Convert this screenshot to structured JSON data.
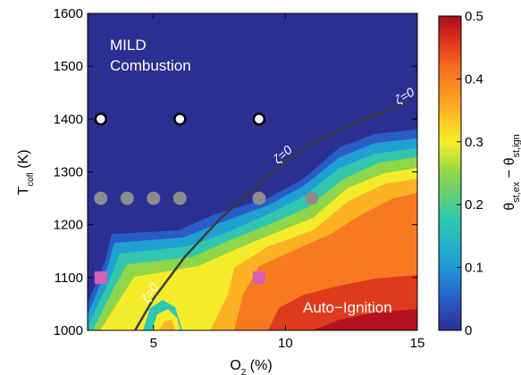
{
  "chart_data": {
    "type": "heatmap",
    "title": "",
    "xlabel": "O",
    "xlabel_sub": "2",
    "xlabel_unit": " (%)",
    "ylabel": "T",
    "ylabel_sub": "cofl",
    "ylabel_unit": " (K)",
    "xlim": [
      2.5,
      15
    ],
    "ylim": [
      1000,
      1600
    ],
    "x_ticks": [
      5,
      10,
      15
    ],
    "y_ticks": [
      1000,
      1100,
      1200,
      1300,
      1400,
      1500,
      1600
    ],
    "colorbar": {
      "label": "θst,ex − θst,ign",
      "label_main_1": "θ",
      "label_sub_1": "st,ex",
      "label_sep": " − θ",
      "label_sub_2": "st,ign",
      "range": [
        0,
        0.5
      ],
      "ticks": [
        0,
        0.1,
        0.2,
        0.3,
        0.4,
        0.5
      ],
      "tick_labels": [
        "0",
        "0.1",
        "0.2",
        "0.3",
        "0.4",
        "0.5"
      ]
    },
    "regions": [
      {
        "label_line1": "MILD",
        "label_line2": "Combustion"
      },
      {
        "label": "Auto−Ignition"
      }
    ],
    "zero_contour": {
      "label": "ζ=0",
      "points": [
        [
          4.3,
          1000
        ],
        [
          5.0,
          1060
        ],
        [
          6.2,
          1140
        ],
        [
          7.5,
          1210
        ],
        [
          8.6,
          1260
        ],
        [
          10.0,
          1320
        ],
        [
          11.2,
          1360
        ],
        [
          13.0,
          1400
        ],
        [
          14.6,
          1430
        ]
      ]
    },
    "transition_boundary": [
      [
        2.5,
        1040
      ],
      [
        3.3,
        1130
      ],
      [
        4.0,
        1210
      ],
      [
        5.5,
        1220
      ],
      [
        6.0,
        1230
      ],
      [
        7.0,
        1240
      ],
      [
        8.5,
        1270
      ],
      [
        10.0,
        1300
      ],
      [
        11.5,
        1345
      ],
      [
        13.0,
        1365
      ],
      [
        15.0,
        1370
      ]
    ],
    "markers": [
      {
        "name": "white circles",
        "shape": "circle",
        "fill": "#ffffff",
        "stroke": "#000000",
        "points": [
          [
            3,
            1400
          ],
          [
            6,
            1400
          ],
          [
            9,
            1400
          ]
        ]
      },
      {
        "name": "gray circles",
        "shape": "circle",
        "fill": "#8c8c8c",
        "points": [
          [
            3,
            1250
          ],
          [
            4,
            1250
          ],
          [
            5,
            1250
          ],
          [
            6,
            1250
          ],
          [
            9,
            1250
          ],
          [
            11,
            1250
          ]
        ]
      },
      {
        "name": "magenta squares",
        "shape": "square",
        "fill": "#d75fb4",
        "points": [
          [
            3,
            1100
          ],
          [
            9,
            1100
          ]
        ]
      }
    ],
    "colors": {
      "background": "#2b2f91",
      "colormap": [
        "#2b2f91",
        "#2a5cc8",
        "#1f9ad8",
        "#2ec7b0",
        "#8fd64a",
        "#f5ef28",
        "#fca923",
        "#f56a1f",
        "#d8261c",
        "#a50f1d"
      ]
    }
  }
}
